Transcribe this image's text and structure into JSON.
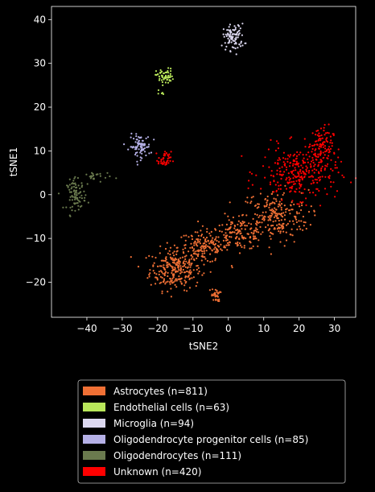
{
  "chart_data": {
    "type": "scatter",
    "xlabel": "tSNE2",
    "ylabel": "tSNE1",
    "xlim": [
      -50,
      36
    ],
    "ylim": [
      -28,
      43
    ],
    "xticks": [
      -40,
      -30,
      -20,
      -10,
      0,
      10,
      20,
      30
    ],
    "yticks": [
      -20,
      -10,
      0,
      10,
      20,
      30,
      40
    ],
    "xtick_labels": [
      "−40",
      "−30",
      "−20",
      "−10",
      "0",
      "10",
      "20",
      "30"
    ],
    "ytick_labels": [
      "−20",
      "−10",
      "0",
      "10",
      "20",
      "30",
      "40"
    ],
    "grid": false,
    "legend_position": "below",
    "background": "#000000",
    "series": [
      {
        "name": "Astrocytes (n=811)",
        "color": "#f07035",
        "count": 811,
        "regions": [
          {
            "cx": -15,
            "cy": -17,
            "rx": 6,
            "ry": 4,
            "n": 260
          },
          {
            "cx": -7,
            "cy": -12,
            "rx": 6,
            "ry": 3,
            "n": 150
          },
          {
            "cx": 3,
            "cy": -9,
            "rx": 6,
            "ry": 3,
            "n": 140
          },
          {
            "cx": 13,
            "cy": -5,
            "rx": 8,
            "ry": 5,
            "n": 230
          },
          {
            "cx": -3.5,
            "cy": -23,
            "rx": 1,
            "ry": 1.2,
            "n": 31
          }
        ]
      },
      {
        "name": "Endothelial cells (n=63)",
        "color": "#b8e65a",
        "count": 63,
        "regions": [
          {
            "cx": -18,
            "cy": 27,
            "rx": 2,
            "ry": 1.5,
            "n": 58
          },
          {
            "cx": -19,
            "cy": 23,
            "rx": 0.6,
            "ry": 1,
            "n": 5
          }
        ]
      },
      {
        "name": "Microglia (n=94)",
        "color": "#dcd8f0",
        "count": 94,
        "regions": [
          {
            "cx": 1.5,
            "cy": 36,
            "rx": 2.5,
            "ry": 2.5,
            "n": 94
          }
        ]
      },
      {
        "name": "Oligodendrocyte progenitor cells (n=85)",
        "color": "#b5b0e6",
        "count": 85,
        "regions": [
          {
            "cx": -25,
            "cy": 11,
            "rx": 2.5,
            "ry": 2.2,
            "n": 85
          }
        ]
      },
      {
        "name": "Oligodendrocytes (n=111)",
        "color": "#6a7a4e",
        "count": 111,
        "regions": [
          {
            "cx": -43,
            "cy": 0,
            "rx": 2.2,
            "ry": 2.8,
            "n": 86
          },
          {
            "cx": -37.5,
            "cy": 4,
            "rx": 3.5,
            "ry": 1.2,
            "n": 25
          }
        ]
      },
      {
        "name": "Unknown (n=420)",
        "color": "#ff0000",
        "count": 420,
        "regions": [
          {
            "cx": 20,
            "cy": 5,
            "rx": 9,
            "ry": 5,
            "n": 280
          },
          {
            "cx": 26,
            "cy": 11,
            "rx": 3,
            "ry": 4,
            "n": 100
          },
          {
            "cx": -18,
            "cy": 8,
            "rx": 1.5,
            "ry": 1.5,
            "n": 40
          }
        ]
      }
    ]
  }
}
